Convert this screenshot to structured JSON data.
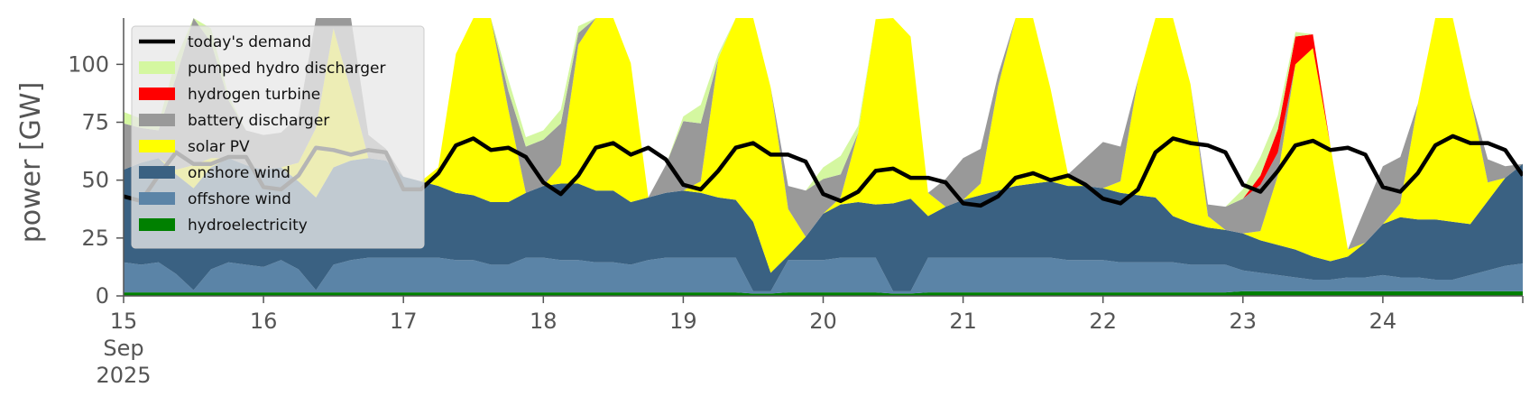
{
  "chart_data": {
    "type": "area",
    "title": "",
    "xlabel": "",
    "ylabel": "power [GW]",
    "ylim": [
      0,
      120
    ],
    "y_ticks": [
      0,
      25,
      50,
      75,
      100
    ],
    "x_range": [
      "2025-09-15",
      "2025-09-25"
    ],
    "x_tick_labels": [
      {
        "date": "2025-09-15",
        "lines": [
          "15",
          "Sep",
          "2025"
        ]
      },
      {
        "date": "2025-09-16",
        "lines": [
          "16"
        ]
      },
      {
        "date": "2025-09-17",
        "lines": [
          "17"
        ]
      },
      {
        "date": "2025-09-18",
        "lines": [
          "18"
        ]
      },
      {
        "date": "2025-09-19",
        "lines": [
          "19"
        ]
      },
      {
        "date": "2025-09-20",
        "lines": [
          "20"
        ]
      },
      {
        "date": "2025-09-21",
        "lines": [
          "21"
        ]
      },
      {
        "date": "2025-09-22",
        "lines": [
          "22"
        ]
      },
      {
        "date": "2025-09-23",
        "lines": [
          "23"
        ]
      },
      {
        "date": "2025-09-24",
        "lines": [
          "24"
        ]
      }
    ],
    "grid": false,
    "legend_position": "top-left",
    "x": [
      "2025-09-15 00:00",
      "2025-09-15 03:00",
      "2025-09-15 06:00",
      "2025-09-15 09:00",
      "2025-09-15 12:00",
      "2025-09-15 15:00",
      "2025-09-15 18:00",
      "2025-09-15 21:00",
      "2025-09-16 00:00",
      "2025-09-16 03:00",
      "2025-09-16 06:00",
      "2025-09-16 09:00",
      "2025-09-16 12:00",
      "2025-09-16 15:00",
      "2025-09-16 18:00",
      "2025-09-16 21:00",
      "2025-09-17 00:00",
      "2025-09-17 03:00",
      "2025-09-17 06:00",
      "2025-09-17 09:00",
      "2025-09-17 12:00",
      "2025-09-17 15:00",
      "2025-09-17 18:00",
      "2025-09-17 21:00",
      "2025-09-18 00:00",
      "2025-09-18 03:00",
      "2025-09-18 06:00",
      "2025-09-18 09:00",
      "2025-09-18 12:00",
      "2025-09-18 15:00",
      "2025-09-18 18:00",
      "2025-09-18 21:00",
      "2025-09-19 00:00",
      "2025-09-19 03:00",
      "2025-09-19 06:00",
      "2025-09-19 09:00",
      "2025-09-19 12:00",
      "2025-09-19 15:00",
      "2025-09-19 18:00",
      "2025-09-19 21:00",
      "2025-09-20 00:00",
      "2025-09-20 03:00",
      "2025-09-20 06:00",
      "2025-09-20 09:00",
      "2025-09-20 12:00",
      "2025-09-20 15:00",
      "2025-09-20 18:00",
      "2025-09-20 21:00",
      "2025-09-21 00:00",
      "2025-09-21 03:00",
      "2025-09-21 06:00",
      "2025-09-21 09:00",
      "2025-09-21 12:00",
      "2025-09-21 15:00",
      "2025-09-21 18:00",
      "2025-09-21 21:00",
      "2025-09-22 00:00",
      "2025-09-22 03:00",
      "2025-09-22 06:00",
      "2025-09-22 09:00",
      "2025-09-22 12:00",
      "2025-09-22 15:00",
      "2025-09-22 18:00",
      "2025-09-22 21:00",
      "2025-09-23 00:00",
      "2025-09-23 03:00",
      "2025-09-23 06:00",
      "2025-09-23 09:00",
      "2025-09-23 12:00",
      "2025-09-23 15:00",
      "2025-09-23 18:00",
      "2025-09-23 21:00",
      "2025-09-24 00:00",
      "2025-09-24 03:00",
      "2025-09-24 06:00",
      "2025-09-24 09:00",
      "2025-09-24 12:00",
      "2025-09-24 15:00",
      "2025-09-24 18:00",
      "2025-09-24 21:00",
      "2025-09-25 00:00"
    ],
    "series": [
      {
        "name": "hydroelectricity",
        "color": "#008000",
        "values": [
          1.5,
          1.5,
          1.5,
          1.5,
          1.5,
          1.5,
          1.5,
          1.5,
          1.5,
          1.5,
          1.5,
          1.5,
          1.5,
          1.5,
          1.5,
          1.5,
          1.5,
          1.5,
          1.5,
          1.5,
          1.5,
          1.5,
          1.5,
          1.5,
          1.5,
          1.5,
          1.5,
          1.5,
          1.5,
          1.5,
          1.5,
          1.5,
          1.5,
          1.5,
          1.5,
          1.5,
          1,
          1,
          1.5,
          1.5,
          1.5,
          1.5,
          1.5,
          1.5,
          1,
          1,
          1.5,
          1.5,
          1.5,
          1.5,
          1.5,
          1.5,
          1.5,
          1.5,
          1.5,
          1.5,
          1.5,
          1.5,
          1.5,
          1.5,
          1.5,
          1.5,
          1.5,
          1.5,
          2,
          2,
          2,
          2,
          2,
          2,
          2,
          2,
          2,
          2,
          2,
          2,
          2,
          2,
          2,
          2,
          2
        ]
      },
      {
        "name": "offshore wind",
        "color": "#5b84a7",
        "values": [
          13,
          12,
          13,
          8,
          1,
          10,
          13,
          12,
          11,
          14,
          10,
          1,
          12,
          14,
          15,
          15,
          15,
          15,
          15,
          14,
          14,
          12,
          12,
          15,
          15,
          14,
          14,
          13,
          13,
          12,
          14,
          15,
          15,
          15,
          15,
          15,
          1,
          1,
          14,
          14,
          14,
          15,
          15,
          15,
          1,
          1,
          15,
          15,
          15,
          15,
          15,
          15,
          15,
          15,
          14,
          14,
          14,
          13,
          13,
          13,
          13,
          12,
          12,
          12,
          9,
          8,
          7,
          6,
          5,
          5,
          6,
          6,
          7,
          6,
          6,
          5,
          5,
          7,
          9,
          11,
          12
        ]
      },
      {
        "name": "onshore wind",
        "color": "#3a6182",
        "values": [
          40,
          44,
          45,
          43,
          44,
          44,
          45,
          43,
          42,
          40,
          38,
          40,
          42,
          43,
          43,
          42,
          35,
          33,
          31,
          29,
          28,
          27,
          27,
          28,
          31,
          33,
          33,
          31,
          31,
          27,
          27,
          28,
          29,
          28,
          26,
          25,
          30,
          8,
          2,
          10,
          20,
          23,
          24,
          23,
          38,
          40,
          18,
          22,
          25,
          27,
          29,
          31,
          32,
          33,
          32,
          32,
          31,
          30,
          29,
          28,
          20,
          18,
          16,
          15,
          16,
          14,
          13,
          12,
          10,
          8,
          9,
          15,
          22,
          26,
          25,
          26,
          25,
          22,
          30,
          38,
          43
        ]
      },
      {
        "name": "solar PV",
        "color": "#ffff00",
        "values": [
          0,
          0,
          0,
          2,
          10,
          4,
          0,
          0,
          0,
          0,
          8,
          30,
          60,
          30,
          0,
          0,
          0,
          0,
          8,
          60,
          120,
          120,
          40,
          0,
          0,
          8,
          60,
          120,
          120,
          60,
          0,
          0,
          0,
          5,
          60,
          120,
          120,
          80,
          20,
          0,
          0,
          3,
          30,
          80,
          110,
          70,
          10,
          0,
          0,
          5,
          45,
          90,
          90,
          40,
          5,
          0,
          0,
          5,
          50,
          110,
          120,
          60,
          5,
          0,
          0,
          4,
          30,
          80,
          90,
          50,
          3,
          0,
          0,
          6,
          50,
          100,
          120,
          55,
          8,
          0,
          0
        ]
      },
      {
        "name": "battery discharger",
        "color": "#999999",
        "values": [
          20,
          15,
          12,
          40,
          90,
          50,
          25,
          15,
          15,
          15,
          20,
          50,
          60,
          40,
          10,
          5,
          0,
          0,
          0,
          0,
          0,
          0,
          8,
          20,
          20,
          18,
          5,
          0,
          0,
          0,
          0,
          12,
          30,
          25,
          0,
          0,
          0,
          0,
          10,
          20,
          15,
          10,
          0,
          0,
          0,
          0,
          0,
          12,
          18,
          15,
          5,
          0,
          0,
          0,
          0,
          12,
          20,
          15,
          0,
          0,
          0,
          0,
          5,
          10,
          15,
          20,
          10,
          0,
          0,
          0,
          0,
          15,
          25,
          20,
          0,
          0,
          0,
          0,
          10,
          5,
          0
        ]
      },
      {
        "name": "hydrogen turbine",
        "color": "#ff0000",
        "values": [
          0,
          0,
          0,
          0,
          0,
          0,
          0,
          0,
          0,
          0,
          0,
          0,
          0,
          0,
          0,
          0,
          0,
          0,
          0,
          0,
          0,
          0,
          0,
          0,
          0,
          0,
          0,
          0,
          0,
          0,
          0,
          0,
          0,
          0,
          0,
          0,
          0,
          0,
          0,
          0,
          0,
          0,
          0,
          0,
          0,
          0,
          0,
          0,
          0,
          0,
          0,
          0,
          0,
          0,
          0,
          0,
          0,
          0,
          0,
          0,
          0,
          0,
          0,
          0,
          0,
          4,
          10,
          12,
          6,
          0,
          0,
          0,
          0,
          0,
          0,
          0,
          0,
          0,
          0,
          0,
          0
        ]
      },
      {
        "name": "pumped hydro discharger",
        "color": "#d4f7a0",
        "values": [
          5,
          4,
          3,
          8,
          15,
          6,
          2,
          0,
          0,
          0,
          0,
          0,
          0,
          0,
          0,
          0,
          0,
          0,
          0,
          0,
          0,
          0,
          5,
          4,
          4,
          6,
          3,
          0,
          0,
          0,
          0,
          0,
          2,
          8,
          2,
          0,
          0,
          0,
          0,
          0,
          5,
          8,
          3,
          0,
          0,
          0,
          0,
          0,
          0,
          0,
          0,
          0,
          0,
          0,
          0,
          0,
          0,
          0,
          0,
          0,
          0,
          0,
          0,
          0,
          4,
          8,
          6,
          2,
          0,
          0,
          0,
          0,
          0,
          0,
          0,
          0,
          0,
          0,
          0,
          0,
          0
        ]
      }
    ],
    "line_series": {
      "name": "today's demand",
      "color": "#000000",
      "values": [
        43,
        41,
        52,
        62,
        57,
        57,
        60,
        60,
        47,
        46,
        52,
        64,
        63,
        61,
        63,
        62,
        46,
        46,
        53,
        65,
        68,
        63,
        64,
        60,
        49,
        44,
        52,
        64,
        66,
        61,
        64,
        59,
        48,
        46,
        54,
        64,
        66,
        61,
        61,
        58,
        44,
        41,
        45,
        54,
        55,
        51,
        51,
        49,
        40,
        39,
        43,
        51,
        53,
        50,
        52,
        48,
        42,
        40,
        46,
        62,
        68,
        66,
        65,
        62,
        48,
        45,
        54,
        65,
        67,
        63,
        64,
        61,
        47,
        45,
        53,
        65,
        69,
        66,
        66,
        63,
        52
      ]
    }
  }
}
